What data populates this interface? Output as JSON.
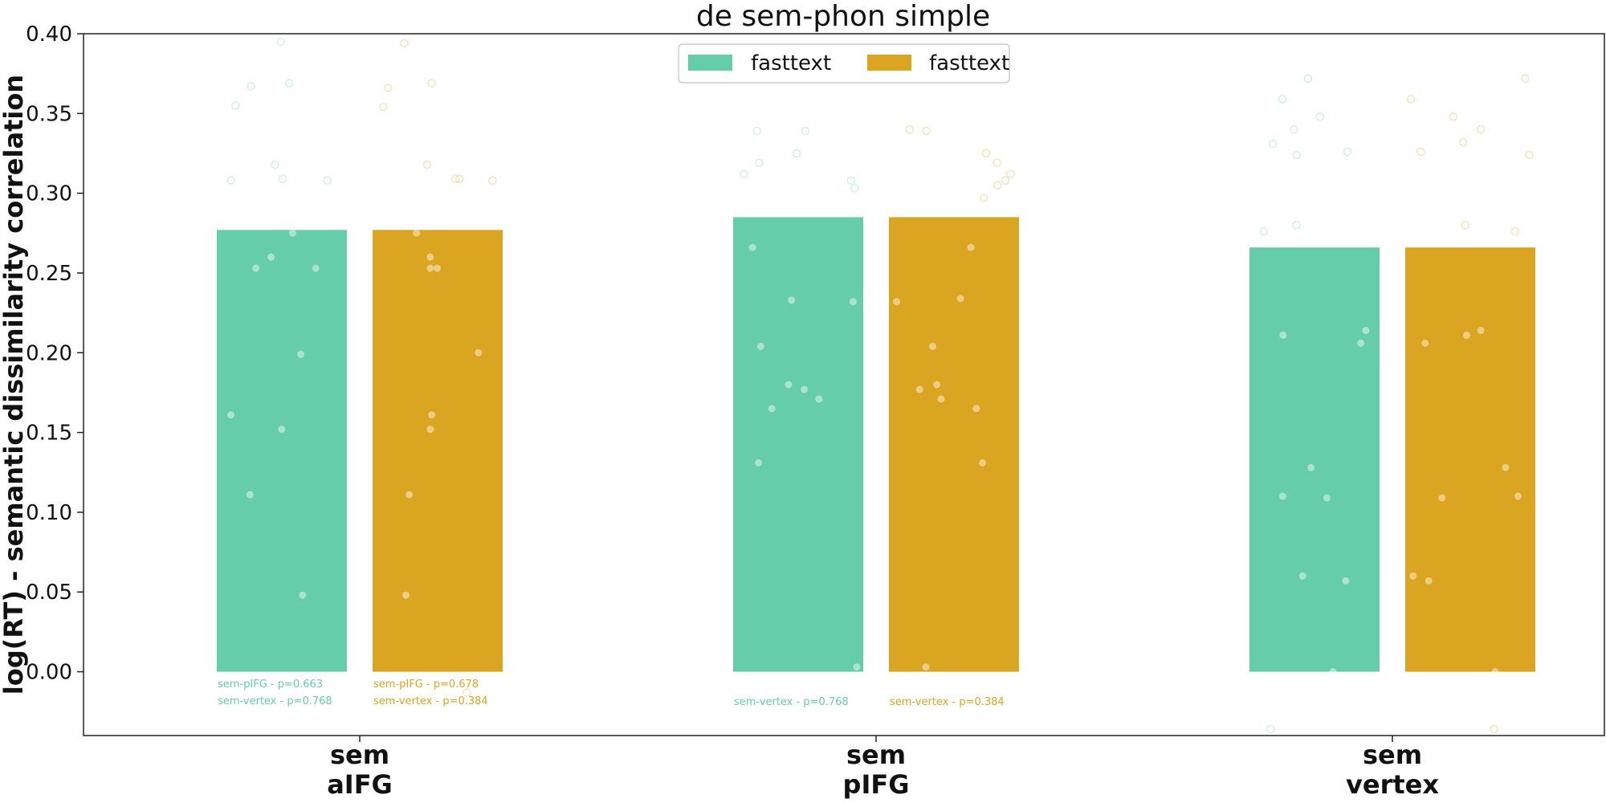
{
  "chart_data": {
    "type": "bar",
    "title": "de sem-phon simple",
    "ylabel": "log(RT) - semantic dissimilarity correlation",
    "xlabel": "",
    "ylim": [
      -0.04,
      0.4
    ],
    "yticks": [
      "0.00",
      "0.05",
      "0.10",
      "0.15",
      "0.20",
      "0.25",
      "0.30",
      "0.35",
      "0.40"
    ],
    "categories": [
      {
        "line1": "sem",
        "line2": "aIFG"
      },
      {
        "line1": "sem",
        "line2": "pIFG"
      },
      {
        "line1": "sem",
        "line2": "vertex"
      }
    ],
    "legend": {
      "position": "upper-center"
    },
    "series": [
      {
        "name": "fasttext",
        "color": "#66cdaa",
        "values": [
          0.277,
          0.285,
          0.266
        ],
        "points": [
          [
            0.395,
            0.369,
            0.355,
            0.367,
            0.318,
            0.309,
            0.308,
            0.308,
            0.275,
            0.26,
            0.253,
            0.253,
            0.199,
            0.161,
            0.152,
            0.111,
            0.048
          ],
          [
            0.339,
            0.339,
            0.325,
            0.319,
            0.312,
            0.308,
            0.303,
            0.266,
            0.233,
            0.232,
            0.204,
            0.18,
            0.177,
            0.171,
            0.165,
            0.131,
            0.003
          ],
          [
            0.372,
            0.359,
            0.348,
            0.34,
            0.331,
            0.326,
            0.324,
            0.28,
            0.276,
            0.214,
            0.211,
            0.206,
            0.128,
            0.11,
            0.109,
            0.06,
            0.057,
            0.0,
            -0.036
          ]
        ],
        "annotations": [
          [
            "sem-pIFG - p=0.663",
            "sem-vertex - p=0.768"
          ],
          [
            "sem-vertex - p=0.768"
          ],
          []
        ]
      },
      {
        "name": "fasttext",
        "color": "#daa520",
        "values": [
          0.277,
          0.285,
          0.266
        ],
        "points": [
          [
            0.394,
            0.369,
            0.366,
            0.354,
            0.318,
            0.309,
            0.309,
            0.308,
            0.275,
            0.26,
            0.253,
            0.253,
            0.2,
            0.161,
            0.152,
            0.111,
            0.048,
            -0.013
          ],
          [
            0.34,
            0.339,
            0.325,
            0.319,
            0.312,
            0.308,
            0.305,
            0.297,
            0.266,
            0.234,
            0.232,
            0.204,
            0.18,
            0.177,
            0.171,
            0.165,
            0.131,
            0.003
          ],
          [
            0.372,
            0.359,
            0.348,
            0.34,
            0.332,
            0.326,
            0.324,
            0.28,
            0.276,
            0.214,
            0.211,
            0.206,
            0.128,
            0.11,
            0.109,
            0.06,
            0.057,
            0.0,
            -0.036
          ]
        ],
        "annotations": [
          [
            "sem-pIFG - p=0.678",
            "sem-vertex - p=0.384"
          ],
          [
            "sem-vertex - p=0.384"
          ],
          []
        ]
      }
    ]
  }
}
